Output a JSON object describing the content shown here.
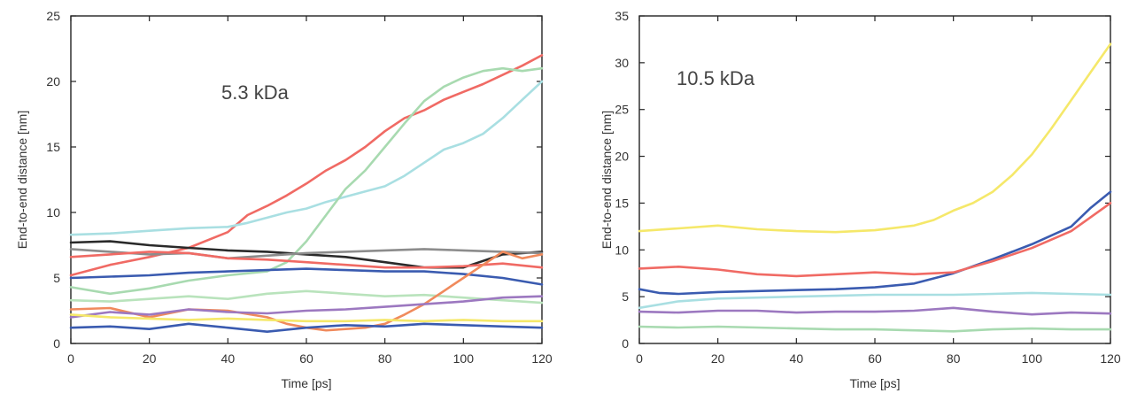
{
  "chart_data": [
    {
      "type": "line",
      "annotation": "5.3 kDa",
      "xlabel": "Time [ps]",
      "ylabel": "End-to-end distance [nm]",
      "xlim": [
        0,
        120
      ],
      "ylim": [
        0,
        25
      ],
      "xticks": [
        0,
        20,
        40,
        60,
        80,
        100,
        120
      ],
      "yticks": [
        0,
        5,
        10,
        15,
        20,
        25
      ],
      "grid": false,
      "series": [
        {
          "color": "#f06a64",
          "x": [
            0,
            10,
            20,
            30,
            40,
            45,
            50,
            55,
            60,
            65,
            70,
            75,
            80,
            85,
            90,
            95,
            100,
            105,
            110,
            115,
            120
          ],
          "y": [
            5.2,
            6,
            6.6,
            7.3,
            8.5,
            9.8,
            10.5,
            11.3,
            12.2,
            13.2,
            14,
            15,
            16.2,
            17.2,
            17.8,
            18.6,
            19.2,
            19.8,
            20.5,
            21.2,
            22
          ]
        },
        {
          "color": "#a9dfe2",
          "x": [
            0,
            10,
            20,
            30,
            40,
            45,
            50,
            55,
            60,
            65,
            70,
            75,
            80,
            85,
            90,
            95,
            100,
            105,
            110,
            115,
            120
          ],
          "y": [
            8.3,
            8.4,
            8.6,
            8.8,
            8.9,
            9.2,
            9.6,
            10,
            10.3,
            10.8,
            11.2,
            11.6,
            12,
            12.8,
            13.8,
            14.8,
            15.3,
            16,
            17.2,
            18.6,
            20
          ]
        },
        {
          "color": "#a8dab0",
          "x": [
            0,
            10,
            20,
            30,
            40,
            50,
            55,
            60,
            65,
            70,
            75,
            80,
            85,
            90,
            95,
            100,
            105,
            110,
            115,
            120
          ],
          "y": [
            4.3,
            3.8,
            4.2,
            4.8,
            5.2,
            5.5,
            6.2,
            7.8,
            9.8,
            11.8,
            13.2,
            15,
            16.8,
            18.5,
            19.6,
            20.3,
            20.8,
            21,
            20.8,
            21
          ]
        },
        {
          "color": "#2a2a2a",
          "x": [
            0,
            10,
            20,
            30,
            40,
            50,
            60,
            70,
            80,
            90,
            100,
            110,
            120
          ],
          "y": [
            7.7,
            7.8,
            7.5,
            7.3,
            7.1,
            7,
            6.8,
            6.6,
            6.2,
            5.8,
            5.8,
            6.8,
            7
          ]
        },
        {
          "color": "#8c8c8c",
          "x": [
            0,
            10,
            20,
            30,
            40,
            50,
            60,
            70,
            80,
            90,
            100,
            110,
            120
          ],
          "y": [
            7.2,
            7,
            6.8,
            6.9,
            6.5,
            6.7,
            6.9,
            7,
            7.1,
            7.2,
            7.1,
            7,
            6.9
          ]
        },
        {
          "color": "#f06a64",
          "x": [
            0,
            10,
            20,
            30,
            40,
            50,
            60,
            70,
            80,
            90,
            100,
            110,
            120
          ],
          "y": [
            6.6,
            6.8,
            7,
            6.9,
            6.5,
            6.4,
            6.2,
            6,
            5.8,
            5.8,
            5.9,
            6.1,
            5.8
          ]
        },
        {
          "color": "#3a5bb0",
          "x": [
            0,
            10,
            20,
            30,
            40,
            50,
            60,
            70,
            80,
            90,
            100,
            110,
            120
          ],
          "y": [
            5,
            5.1,
            5.2,
            5.4,
            5.5,
            5.6,
            5.7,
            5.6,
            5.5,
            5.5,
            5.3,
            5,
            4.5
          ]
        },
        {
          "color": "#b9e3bc",
          "x": [
            0,
            10,
            20,
            30,
            40,
            50,
            60,
            70,
            80,
            90,
            100,
            110,
            120
          ],
          "y": [
            3.3,
            3.2,
            3.4,
            3.6,
            3.4,
            3.8,
            4,
            3.8,
            3.6,
            3.7,
            3.5,
            3.3,
            3.1
          ]
        },
        {
          "color": "#f08a5c",
          "x": [
            0,
            10,
            20,
            30,
            40,
            50,
            55,
            60,
            65,
            70,
            75,
            80,
            85,
            90,
            95,
            100,
            105,
            110,
            115,
            120
          ],
          "y": [
            2.6,
            2.7,
            2,
            2.6,
            2.5,
            2,
            1.5,
            1.2,
            1,
            1.1,
            1.2,
            1.5,
            2.2,
            3,
            4,
            5,
            6,
            7,
            6.5,
            6.8
          ]
        },
        {
          "color": "#9c78c0",
          "x": [
            0,
            10,
            20,
            30,
            40,
            50,
            60,
            70,
            80,
            90,
            100,
            110,
            120
          ],
          "y": [
            2,
            2.4,
            2.2,
            2.6,
            2.4,
            2.3,
            2.5,
            2.6,
            2.8,
            3,
            3.2,
            3.5,
            3.6
          ]
        },
        {
          "color": "#f5e86a",
          "x": [
            0,
            10,
            20,
            30,
            40,
            50,
            60,
            70,
            80,
            90,
            100,
            110,
            120
          ],
          "y": [
            2.2,
            2,
            1.9,
            1.8,
            1.9,
            1.8,
            1.7,
            1.7,
            1.8,
            1.7,
            1.8,
            1.7,
            1.7
          ]
        },
        {
          "color": "#3a5bb0",
          "x": [
            0,
            10,
            20,
            30,
            40,
            50,
            60,
            70,
            80,
            90,
            100,
            110,
            120
          ],
          "y": [
            1.2,
            1.3,
            1.1,
            1.5,
            1.2,
            0.9,
            1.2,
            1.4,
            1.3,
            1.5,
            1.4,
            1.3,
            1.2
          ]
        }
      ]
    },
    {
      "type": "line",
      "annotation": "10.5 kDa",
      "xlabel": "Time [ps]",
      "ylabel": "End-to-end distance [nm]",
      "xlim": [
        0,
        120
      ],
      "ylim": [
        0,
        35
      ],
      "xticks": [
        0,
        20,
        40,
        60,
        80,
        100,
        120
      ],
      "yticks": [
        0,
        5,
        10,
        15,
        20,
        25,
        30,
        35
      ],
      "grid": false,
      "series": [
        {
          "color": "#f5e86a",
          "x": [
            0,
            10,
            20,
            30,
            40,
            50,
            60,
            70,
            75,
            80,
            85,
            90,
            95,
            100,
            105,
            110,
            115,
            120
          ],
          "y": [
            12,
            12.3,
            12.6,
            12.2,
            12,
            11.9,
            12.1,
            12.6,
            13.2,
            14.2,
            15,
            16.2,
            18,
            20.2,
            23,
            26,
            29,
            32
          ]
        },
        {
          "color": "#3a5bb0",
          "x": [
            0,
            5,
            10,
            20,
            30,
            40,
            50,
            60,
            70,
            80,
            90,
            100,
            110,
            115,
            120
          ],
          "y": [
            5.8,
            5.4,
            5.3,
            5.5,
            5.6,
            5.7,
            5.8,
            6,
            6.4,
            7.5,
            9,
            10.6,
            12.5,
            14.5,
            16.2
          ]
        },
        {
          "color": "#f06a64",
          "x": [
            0,
            10,
            20,
            30,
            40,
            50,
            60,
            70,
            80,
            90,
            100,
            110,
            120
          ],
          "y": [
            8,
            8.2,
            7.9,
            7.4,
            7.2,
            7.4,
            7.6,
            7.4,
            7.6,
            8.8,
            10.2,
            12,
            15
          ]
        },
        {
          "color": "#a9dfe2",
          "x": [
            0,
            10,
            20,
            30,
            40,
            50,
            60,
            70,
            80,
            90,
            100,
            110,
            120
          ],
          "y": [
            3.8,
            4.5,
            4.8,
            4.9,
            5,
            5.1,
            5.2,
            5.2,
            5.2,
            5.3,
            5.4,
            5.3,
            5.2
          ]
        },
        {
          "color": "#9c78c0",
          "x": [
            0,
            10,
            20,
            30,
            40,
            50,
            60,
            70,
            80,
            90,
            100,
            110,
            120
          ],
          "y": [
            3.4,
            3.3,
            3.5,
            3.5,
            3.3,
            3.4,
            3.4,
            3.5,
            3.8,
            3.4,
            3.1,
            3.3,
            3.2
          ]
        },
        {
          "color": "#a8dab0",
          "x": [
            0,
            10,
            20,
            30,
            40,
            50,
            60,
            70,
            80,
            90,
            100,
            110,
            120
          ],
          "y": [
            1.8,
            1.7,
            1.8,
            1.7,
            1.6,
            1.5,
            1.5,
            1.4,
            1.3,
            1.5,
            1.6,
            1.5,
            1.5
          ]
        }
      ]
    }
  ]
}
